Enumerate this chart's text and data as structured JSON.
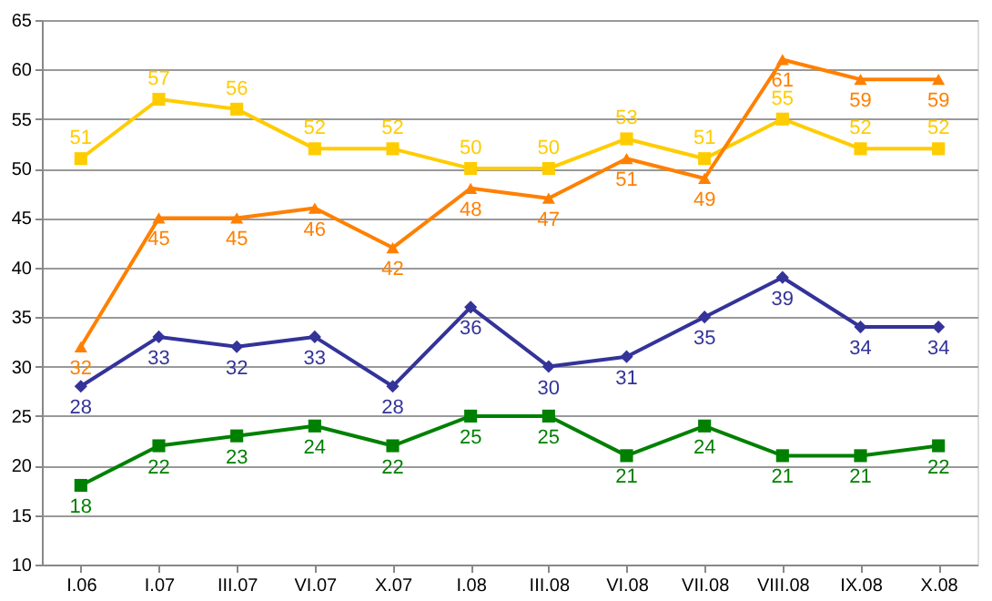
{
  "chart_data": {
    "type": "line",
    "categories": [
      "I.06",
      "I.07",
      "III.07",
      "VI.07",
      "X.07",
      "I.08",
      "III.08",
      "VI.08",
      "VII.08",
      "VIII.08",
      "IX.08",
      "X.08"
    ],
    "series": [
      {
        "color": "#ffcc00",
        "marker": "square",
        "values": [
          51,
          57,
          56,
          52,
          52,
          50,
          50,
          53,
          51,
          55,
          52,
          52
        ]
      },
      {
        "color": "#ff8000",
        "marker": "triangle",
        "values": [
          32,
          45,
          45,
          46,
          42,
          48,
          47,
          51,
          49,
          61,
          59,
          59
        ]
      },
      {
        "color": "#333399",
        "marker": "diamond",
        "values": [
          28,
          33,
          32,
          33,
          28,
          36,
          30,
          31,
          35,
          39,
          34,
          34
        ]
      },
      {
        "color": "#008000",
        "marker": "square",
        "values": [
          18,
          22,
          23,
          24,
          22,
          25,
          25,
          21,
          24,
          21,
          21,
          22
        ]
      }
    ],
    "ylim": [
      10,
      65
    ],
    "yticks": [
      10,
      15,
      20,
      25,
      30,
      35,
      40,
      45,
      50,
      55,
      60,
      65
    ],
    "grid": "y",
    "data_labels": true,
    "line_style": "solid"
  }
}
